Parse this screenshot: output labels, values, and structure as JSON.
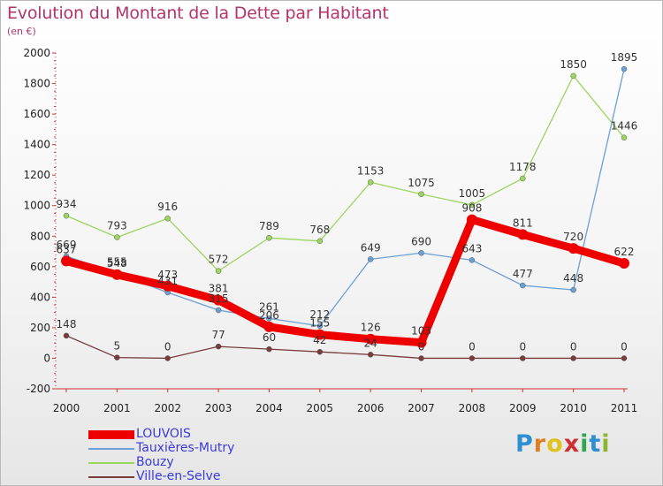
{
  "title": "Evolution du Montant de la Dette par Habitant",
  "unit": "(en €)",
  "logo": [
    "P",
    "r",
    "o",
    "x",
    "i",
    "t",
    "i"
  ],
  "logo_colors": [
    "#2f8fd1",
    "#e07f1f",
    "#e0c11f",
    "#d12f2f",
    "#2fa84f",
    "#2f8fd1",
    "#8fb52f"
  ],
  "chart_data": {
    "type": "line",
    "x": [
      "2000",
      "2001",
      "2002",
      "2003",
      "2004",
      "2005",
      "2006",
      "2007",
      "2008",
      "2009",
      "2010",
      "2011"
    ],
    "ylim": [
      -200,
      2000
    ],
    "yticks": [
      -200,
      0,
      200,
      400,
      600,
      800,
      1000,
      1200,
      1400,
      1600,
      1800,
      2000
    ],
    "grid": false,
    "legend_position": "bottom-left",
    "series": [
      {
        "name": "LOUVOIS",
        "color": "#ee0000",
        "values": [
          637,
          548,
          473,
          381,
          206,
          155,
          126,
          103,
          908,
          811,
          720,
          622
        ],
        "labels": [
          "637",
          "548",
          "473",
          "381",
          "206",
          "155",
          "126",
          "103",
          "908",
          "811",
          "720",
          "622"
        ]
      },
      {
        "name": "Tauxières-Mutry",
        "color": "#6aa0d4",
        "values": [
          669,
          555,
          431,
          315,
          261,
          212,
          649,
          690,
          643,
          477,
          448,
          1895
        ],
        "labels": [
          "669",
          "555",
          "431",
          "315",
          "261",
          "212",
          "649",
          "690",
          "643",
          "477",
          "448",
          "1895"
        ]
      },
      {
        "name": "Bouzy",
        "color": "#9bd65f",
        "values": [
          934,
          793,
          916,
          572,
          789,
          768,
          1153,
          1075,
          1005,
          1178,
          1850,
          1446
        ],
        "labels": [
          "934",
          "793",
          "916",
          "572",
          "789",
          "768",
          "1153",
          "1075",
          "1005",
          "1178",
          "1850",
          "1446"
        ]
      },
      {
        "name": "Ville-en-Selve",
        "color": "#7a3b3b",
        "values": [
          148,
          5,
          0,
          77,
          60,
          42,
          24,
          0,
          0,
          0,
          0,
          0
        ],
        "labels": [
          "148",
          "5",
          "0",
          "77",
          "60",
          "42",
          "24",
          "0",
          "0",
          "0",
          "0",
          "0"
        ]
      }
    ]
  }
}
